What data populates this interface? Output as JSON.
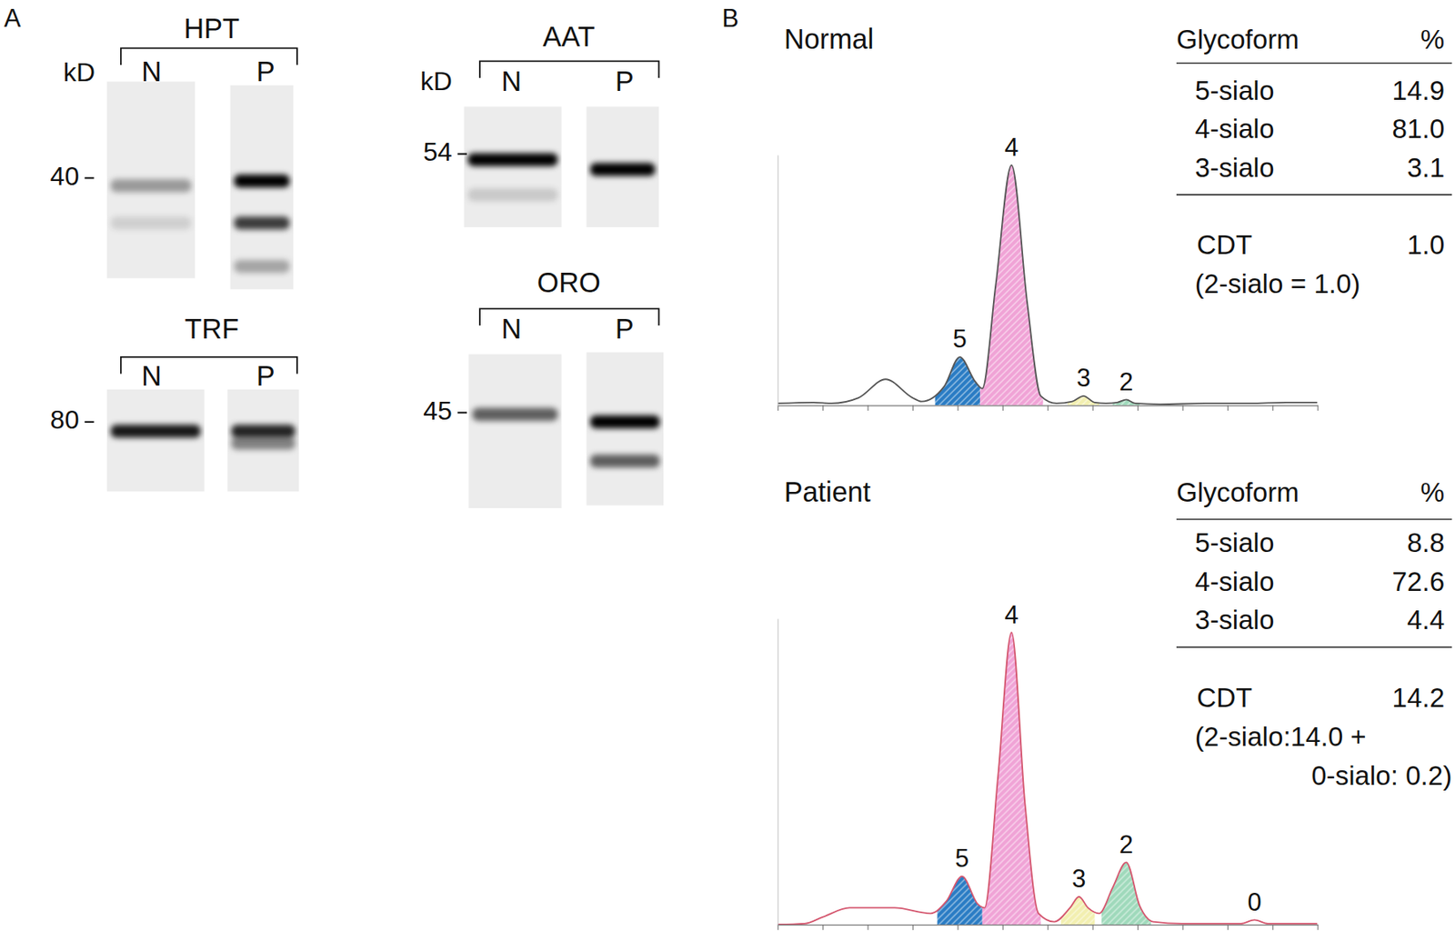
{
  "panel_labels": [
    "A",
    "B"
  ],
  "blots": [
    {
      "title": "HPT",
      "unit": "kD",
      "marker": 40,
      "lanes": [
        "N",
        "P"
      ],
      "bands": [
        {
          "lane": "N",
          "kd": 38.5,
          "intensity": 0.35
        },
        {
          "lane": "N",
          "kd": 32,
          "intensity": 0.12
        },
        {
          "lane": "P",
          "kd": 39.4,
          "intensity": 1.0
        },
        {
          "lane": "P",
          "kd": 32,
          "intensity": 0.75
        },
        {
          "lane": "P",
          "kd": 25.8,
          "intensity": 0.3
        }
      ]
    },
    {
      "title": "TRF",
      "marker": 80,
      "lanes": [
        "N",
        "P"
      ],
      "bands": [
        {
          "lane": "N",
          "kd": 76.4,
          "intensity": 0.9
        },
        {
          "lane": "P",
          "kd": 76.4,
          "intensity": 0.85
        },
        {
          "lane": "P",
          "kd": 72.0,
          "intensity": 0.45
        }
      ]
    },
    {
      "title": "AAT",
      "unit": "kD",
      "marker": 54,
      "lanes": [
        "N",
        "P"
      ],
      "bands": [
        {
          "lane": "N",
          "kd": 52.5,
          "intensity": 1.0
        },
        {
          "lane": "N",
          "kd": 44.1,
          "intensity": 0.15
        },
        {
          "lane": "P",
          "kd": 50.0,
          "intensity": 1.0
        }
      ]
    },
    {
      "title": "ORO",
      "marker": 45,
      "lanes": [
        "N",
        "P"
      ],
      "bands": [
        {
          "lane": "N",
          "kd": 44.6,
          "intensity": 0.6
        },
        {
          "lane": "P",
          "kd": 43.0,
          "intensity": 1.0
        },
        {
          "lane": "P",
          "kd": 35.4,
          "intensity": 0.6
        }
      ]
    }
  ],
  "chart_data": [
    {
      "type": "line",
      "title": "Normal",
      "color": "#555555",
      "x": [
        0,
        0.8,
        1.2,
        1.8,
        2.4,
        3.0,
        3.2,
        3.7,
        4.05,
        4.4,
        4.55,
        4.85,
        5.2,
        5.55,
        5.85,
        6.2,
        6.55,
        6.8,
        7.05,
        7.3,
        7.55,
        7.75,
        7.95,
        8.5,
        9.5,
        10.5,
        11.3,
        12
      ],
      "values": [
        2,
        3,
        2,
        8,
        28,
        8,
        4,
        20,
        52,
        25,
        18,
        130,
        259,
        110,
        10,
        2,
        4,
        10,
        3,
        2,
        3,
        6,
        2,
        1,
        2,
        2,
        3,
        3
      ],
      "xlim": [
        0,
        12
      ],
      "xticks": [
        0,
        1,
        2,
        3,
        4,
        5,
        6,
        7,
        8,
        9,
        10,
        11,
        12
      ],
      "ylim": [
        0,
        270
      ],
      "yticks": [],
      "tick_labels": false,
      "peaks": [
        {
          "label": "5",
          "x": 4.05,
          "x_range": [
            3.5,
            4.5
          ],
          "color": "#2a7cc4"
        },
        {
          "label": "4",
          "x": 5.2,
          "x_range": [
            4.5,
            5.9
          ],
          "color": "#f0a3d6"
        },
        {
          "label": "3",
          "x": 6.8,
          "x_range": [
            6.45,
            7.15
          ],
          "color": "#f2efb0"
        },
        {
          "label": "2",
          "x": 7.75,
          "x_range": [
            7.45,
            8.05
          ],
          "color": "#9fd9bb"
        }
      ],
      "table": {
        "header": [
          "Glycoform",
          "%"
        ],
        "rows": [
          [
            "5-sialo",
            "14.9"
          ],
          [
            "4-sialo",
            "81.0"
          ],
          [
            "3-sialo",
            "3.1"
          ]
        ],
        "summary": [
          "CDT",
          "1.0"
        ],
        "note": [
          "(2-sialo = 1.0)"
        ]
      }
    },
    {
      "type": "line",
      "title": "Patient",
      "color": "#d4566e",
      "x": [
        0,
        0.6,
        1.0,
        1.6,
        2.6,
        3.4,
        3.75,
        4.1,
        4.45,
        4.6,
        4.9,
        5.2,
        5.5,
        5.8,
        6.15,
        6.5,
        6.7,
        6.9,
        7.15,
        7.45,
        7.75,
        8.05,
        8.35,
        9.0,
        10.3,
        10.6,
        10.9,
        12
      ],
      "values": [
        0,
        1,
        8,
        18,
        18,
        12,
        25,
        52,
        22,
        18,
        160,
        315,
        130,
        12,
        3,
        18,
        30,
        18,
        12,
        40,
        67,
        20,
        3,
        1,
        1,
        5,
        1,
        1
      ],
      "xlim": [
        0,
        12
      ],
      "xticks": [
        0,
        1,
        2,
        3,
        4,
        5,
        6,
        7,
        8,
        9,
        10,
        11,
        12
      ],
      "ylim": [
        0,
        330
      ],
      "yticks": [],
      "tick_labels": false,
      "peaks": [
        {
          "label": "5",
          "x": 4.1,
          "x_range": [
            3.55,
            4.55
          ],
          "color": "#2a7cc4"
        },
        {
          "label": "4",
          "x": 5.2,
          "x_range": [
            4.55,
            5.85
          ],
          "color": "#f0a3d6"
        },
        {
          "label": "3",
          "x": 6.7,
          "x_range": [
            6.3,
            7.05
          ],
          "color": "#f2efb0"
        },
        {
          "label": "2",
          "x": 7.75,
          "x_range": [
            7.2,
            8.3
          ],
          "color": "#9fd9bb"
        },
        {
          "label": "0",
          "x": 10.6
        }
      ],
      "table": {
        "header": [
          "Glycoform",
          "%"
        ],
        "rows": [
          [
            "5-sialo",
            "8.8"
          ],
          [
            "4-sialo",
            "72.6"
          ],
          [
            "3-sialo",
            "4.4"
          ]
        ],
        "summary": [
          "CDT",
          "14.2"
        ],
        "note": [
          "(2-sialo:14.0 +",
          "0-sialo: 0.2)"
        ]
      }
    }
  ]
}
